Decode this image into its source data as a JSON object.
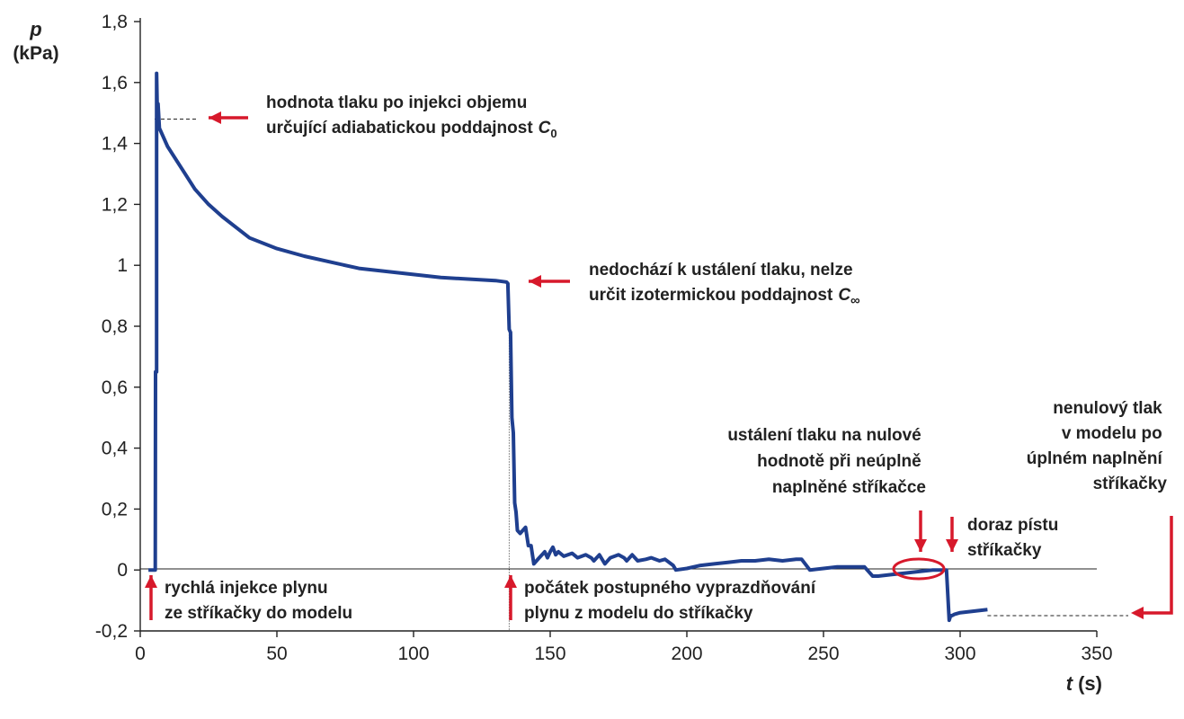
{
  "chart_data": {
    "type": "line",
    "title": "",
    "xlabel": {
      "symbol": "t",
      "unit": "(s)"
    },
    "ylabel": {
      "symbol": "p",
      "unit": "(kPa)"
    },
    "xlim": [
      0,
      350
    ],
    "ylim": [
      -0.2,
      1.8
    ],
    "x_ticks": [
      "0",
      "50",
      "100",
      "150",
      "200",
      "250",
      "300",
      "350"
    ],
    "y_ticks": [
      "-0,2",
      "0",
      "0,2",
      "0,4",
      "0,6",
      "0,8",
      "1",
      "1,2",
      "1,4",
      "1,6",
      "1,8"
    ],
    "grid": false,
    "line_color": "#1f3f8f",
    "series": [
      {
        "x": [
          3,
          5,
          5.5,
          5.6,
          6,
          6,
          6.3,
          6.5,
          7,
          10,
          15,
          20,
          25,
          30,
          40,
          50,
          60,
          70,
          80,
          90,
          100,
          110,
          120,
          130,
          134,
          134.5,
          135,
          135.5,
          136,
          136.5,
          137,
          137.5,
          138,
          139,
          140,
          141,
          142,
          143,
          144,
          145,
          146,
          147,
          148,
          149,
          150,
          151,
          152,
          153,
          155,
          158,
          160,
          163,
          165,
          166,
          168,
          170,
          172,
          175,
          177,
          178,
          180,
          182,
          185,
          187,
          190,
          192,
          195,
          196,
          200,
          205,
          210,
          215,
          220,
          225,
          230,
          235,
          240,
          242,
          245,
          250,
          255,
          260,
          265,
          268,
          270,
          275,
          280,
          285,
          290,
          295,
          296,
          296.5,
          297,
          298,
          300,
          305,
          310
        ],
        "y": [
          0.0,
          0.0,
          0.0,
          0.65,
          0.65,
          1.63,
          1.47,
          1.53,
          1.45,
          1.39,
          1.32,
          1.25,
          1.2,
          1.16,
          1.09,
          1.055,
          1.03,
          1.01,
          0.99,
          0.98,
          0.97,
          0.96,
          0.955,
          0.95,
          0.945,
          0.94,
          0.79,
          0.78,
          0.5,
          0.45,
          0.22,
          0.19,
          0.13,
          0.12,
          0.13,
          0.14,
          0.08,
          0.08,
          0.02,
          0.03,
          0.04,
          0.05,
          0.06,
          0.04,
          0.06,
          0.075,
          0.05,
          0.06,
          0.045,
          0.055,
          0.04,
          0.05,
          0.04,
          0.03,
          0.05,
          0.02,
          0.04,
          0.05,
          0.04,
          0.03,
          0.05,
          0.03,
          0.035,
          0.04,
          0.03,
          0.035,
          0.015,
          0.0,
          0.005,
          0.015,
          0.02,
          0.025,
          0.03,
          0.03,
          0.035,
          0.03,
          0.035,
          0.035,
          0.0,
          0.005,
          0.01,
          0.01,
          0.01,
          -0.02,
          -0.02,
          -0.015,
          -0.01,
          -0.005,
          0.0,
          0.0,
          -0.165,
          -0.15,
          -0.15,
          -0.145,
          -0.14,
          -0.135,
          -0.13
        ]
      }
    ],
    "annotations": [
      {
        "lines": [
          "hodnota tlaku po injekci objemu",
          "určující adiabatickou poddajnost"
        ],
        "symbol": "C",
        "sub": "0"
      },
      {
        "lines": [
          "nedochází k ustálení tlaku, nelze",
          "určit izotermickou poddajnost"
        ],
        "symbol": "C",
        "sub": "∞"
      },
      {
        "lines": [
          "ustálení tlaku na nulové",
          "hodnotě při neúplně",
          "naplněné stříkačce"
        ]
      },
      {
        "lines": [
          "nenulový tlak",
          "v modelu po",
          "úplném naplnění",
          "stříkačky"
        ]
      },
      {
        "lines": [
          "doraz pístu",
          "stříkačky"
        ]
      },
      {
        "lines": [
          "rychlá injekce plynu",
          "ze stříkačky do modelu"
        ]
      },
      {
        "lines": [
          "počátek postupného vyprazdňování",
          "plynu z modelu do stříkačky"
        ]
      }
    ],
    "arrow_color": "#d7192b"
  }
}
